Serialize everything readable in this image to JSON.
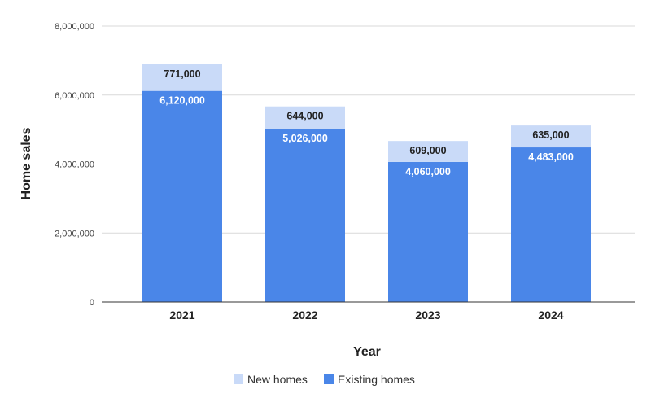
{
  "chart_data": {
    "type": "bar",
    "stacked": true,
    "title": "",
    "xlabel": "Year",
    "ylabel": "Home sales",
    "categories": [
      "2021",
      "2022",
      "2023",
      "2024"
    ],
    "ylim": [
      0,
      8000000
    ],
    "yticks": [
      0,
      2000000,
      4000000,
      6000000,
      8000000
    ],
    "ytick_labels": [
      "0",
      "2,000,000",
      "4,000,000",
      "6,000,000",
      "8,000,000"
    ],
    "grid": true,
    "legend_position": "bottom",
    "series": [
      {
        "name": "Existing homes",
        "color": "#4a86e8",
        "values": [
          6120000,
          5026000,
          4060000,
          4483000
        ],
        "data_labels": [
          "6,120,000",
          "5,026,000",
          "4,060,000",
          "4,483,000"
        ]
      },
      {
        "name": "New homes",
        "color": "#c9daf8",
        "values": [
          771000,
          644000,
          609000,
          635000
        ],
        "data_labels": [
          "771,000",
          "644,000",
          "609,000",
          "635,000"
        ]
      }
    ],
    "legend_order": [
      "New homes",
      "Existing homes"
    ]
  }
}
